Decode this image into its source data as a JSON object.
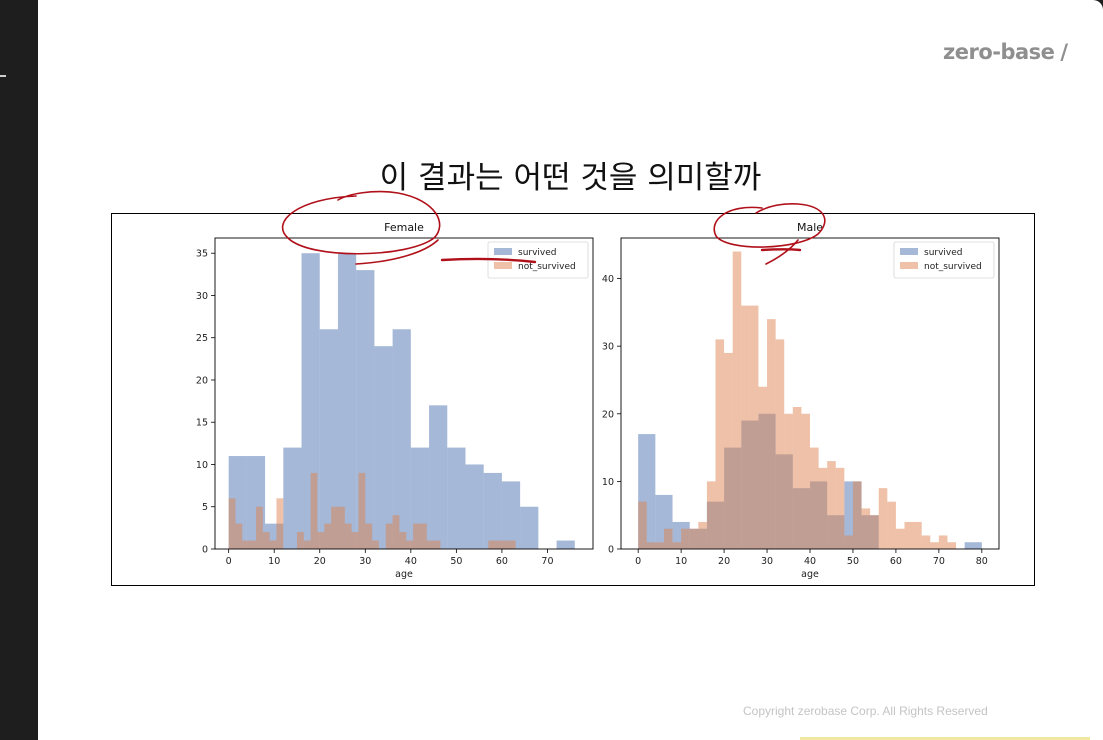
{
  "logo": {
    "text": "zero-base",
    "slash": "/"
  },
  "slide_title": "이 결과는 어떤 것을 의미할까",
  "copyright": "Copyright zerobase Corp. All Rights Reserved",
  "colors": {
    "survived": "#4C72B0",
    "not_survived": "#DD8452",
    "annotation": "#b0101a"
  },
  "chart_data": [
    {
      "type": "histogram",
      "title": "Female",
      "xlabel": "age",
      "ylabel": "",
      "xlim": [
        -3,
        80
      ],
      "ylim": [
        0,
        36.8
      ],
      "xticks": [
        0,
        10,
        20,
        30,
        40,
        50,
        60,
        70
      ],
      "yticks": [
        0,
        5,
        10,
        15,
        20,
        25,
        30,
        35
      ],
      "legend": {
        "position": "top-right",
        "entries": [
          "survived",
          "not_survived"
        ]
      },
      "series": [
        {
          "name": "survived",
          "bins": [
            0,
            4,
            8,
            12,
            16,
            20,
            24,
            28,
            32,
            36,
            40,
            44,
            48,
            52,
            56,
            60,
            64,
            68,
            72,
            76
          ],
          "counts": [
            11,
            11,
            3,
            12,
            35,
            26,
            35,
            33,
            24,
            26,
            12,
            17,
            12,
            10,
            9,
            8,
            5,
            0,
            1,
            0
          ]
        },
        {
          "name": "not_survived",
          "bins": [
            0,
            1.5,
            3,
            4.5,
            6,
            7.5,
            9,
            10.5,
            12,
            13.5,
            15,
            16.5,
            18,
            19.5,
            21,
            22.5,
            24,
            25.5,
            27,
            28.5,
            30,
            31.5,
            33,
            34.5,
            36,
            37.5,
            39,
            40.5,
            42,
            43.5,
            45,
            46.5,
            48,
            49.5,
            51,
            52.5,
            54,
            55.5,
            57,
            58.5,
            60,
            61.5,
            63
          ],
          "counts": [
            6,
            3,
            1,
            1,
            5,
            2,
            1,
            6,
            0,
            0,
            2,
            1,
            9,
            2,
            3,
            5,
            5,
            3,
            2,
            9,
            3,
            1,
            0,
            3,
            4,
            2,
            1,
            3,
            3,
            1,
            1,
            0,
            0,
            0,
            0,
            0,
            0,
            0,
            1,
            1,
            1,
            1
          ]
        }
      ]
    },
    {
      "type": "histogram",
      "title": "Male",
      "xlabel": "age",
      "ylabel": "",
      "xlim": [
        -4,
        84
      ],
      "ylim": [
        0,
        46
      ],
      "xticks": [
        0,
        10,
        20,
        30,
        40,
        50,
        60,
        70,
        80
      ],
      "yticks": [
        0,
        10,
        20,
        30,
        40
      ],
      "legend": {
        "position": "top-right",
        "entries": [
          "survived",
          "not_survived"
        ]
      },
      "series": [
        {
          "name": "survived",
          "bins": [
            0,
            4,
            8,
            12,
            16,
            20,
            24,
            28,
            32,
            36,
            40,
            44,
            48,
            52,
            56,
            60,
            64,
            68,
            72,
            76,
            80
          ],
          "counts": [
            17,
            8,
            4,
            3,
            7,
            15,
            19,
            20,
            14,
            9,
            10,
            5,
            10,
            5,
            0,
            0,
            0,
            0,
            0,
            1
          ]
        },
        {
          "name": "not_survived",
          "bins": [
            0,
            2,
            4,
            6,
            8,
            10,
            12,
            14,
            16,
            18,
            20,
            22,
            24,
            26,
            28,
            30,
            32,
            34,
            36,
            38,
            40,
            42,
            44,
            46,
            48,
            50,
            52,
            54,
            56,
            58,
            60,
            62,
            64,
            66,
            68,
            70,
            72,
            74
          ],
          "counts": [
            7,
            1,
            1,
            3,
            1,
            3,
            3,
            4,
            10,
            31,
            29,
            44,
            36,
            36,
            24,
            34,
            31,
            20,
            21,
            20,
            15,
            12,
            13,
            12,
            2,
            10,
            6,
            5,
            9,
            7,
            3,
            4,
            4,
            2,
            1,
            2,
            1
          ]
        }
      ]
    }
  ]
}
